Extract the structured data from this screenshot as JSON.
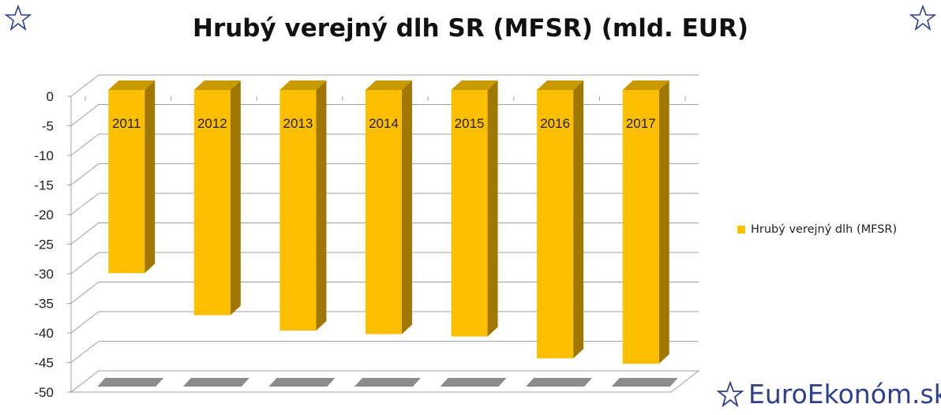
{
  "chart_data": {
    "type": "bar",
    "title": "Hrubý verejný dlh SR (MFSR) (mld. EUR)",
    "categories": [
      "2011",
      "2012",
      "2013",
      "2014",
      "2015",
      "2016",
      "2017"
    ],
    "series": [
      {
        "name": "Hrubý verejný dlh (MFSR)",
        "values": [
          -29.9,
          -37.0,
          -39.6,
          -40.2,
          -40.6,
          -44.3,
          -45.2
        ]
      }
    ],
    "yticks": [
      0,
      -5,
      -10,
      -15,
      -20,
      -25,
      -30,
      -35,
      -40,
      -45,
      -50
    ],
    "ylim": [
      -50,
      0
    ],
    "grid": true,
    "legend_position": "right",
    "colors": {
      "bar_front": "#fcbf00",
      "bar_top": "#c99a00",
      "bar_side": "#a07800",
      "grid": "#a0a0a0",
      "floor_shadow": "#8c8c8c"
    }
  },
  "branding": {
    "logo_text": "EuroEkonóm.sk",
    "brand_color": "#2e3f8f",
    "icons": [
      "star-outline-icon"
    ]
  }
}
